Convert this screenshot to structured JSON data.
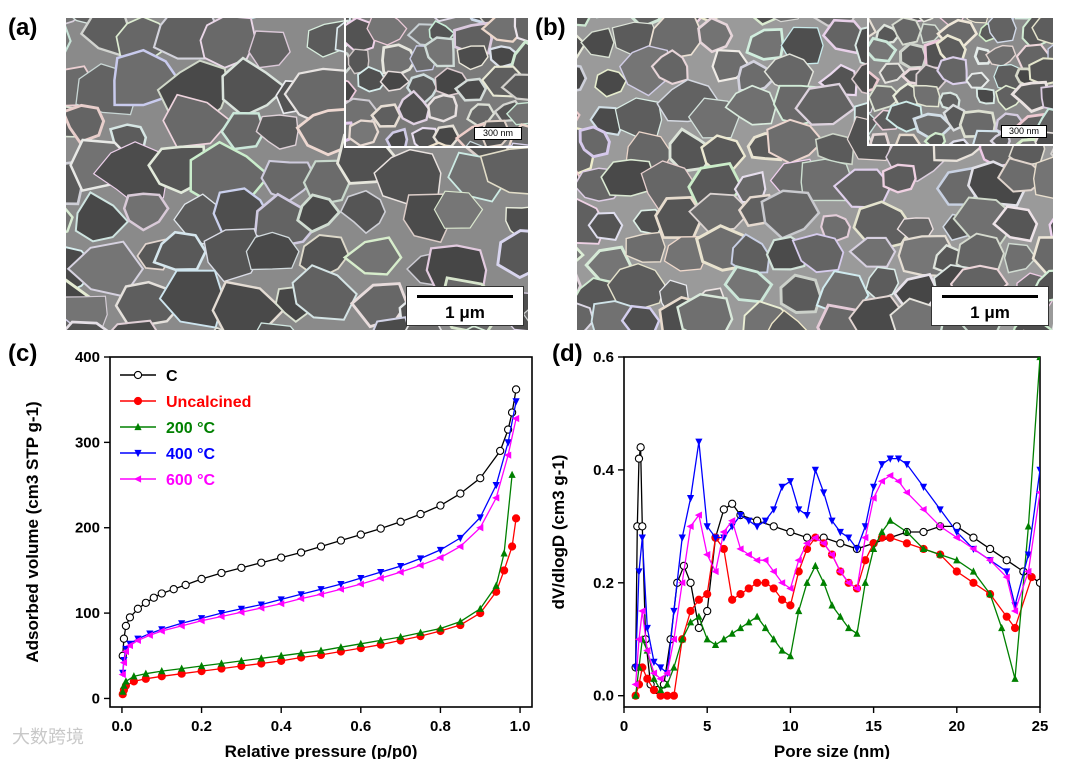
{
  "panels": {
    "a": {
      "label": "(a)",
      "scalebar": "1 μm",
      "inset_scalebar": "300 nm"
    },
    "b": {
      "label": "(b)",
      "scalebar": "1 μm",
      "inset_scalebar": "300 nm"
    },
    "c": {
      "label": "(c)"
    },
    "d": {
      "label": "(d)"
    }
  },
  "watermark": "大数跨境",
  "chart_data": [
    {
      "type": "line",
      "title": "",
      "xlabel": "Relative pressure (p/p0)",
      "ylabel": "Adsorbed volume (cm3 STP g-1)",
      "xlim": [
        -0.03,
        1.03
      ],
      "ylim": [
        -10,
        400
      ],
      "xticks": [
        "0.0",
        "0.2",
        "0.4",
        "0.6",
        "0.8",
        "1.0"
      ],
      "yticks": [
        "0",
        "100",
        "200",
        "300",
        "400"
      ],
      "legend_position": "top-left",
      "series": [
        {
          "name": "C",
          "color": "#000000",
          "marker": "circle-open",
          "x": [
            0.002,
            0.005,
            0.01,
            0.02,
            0.04,
            0.06,
            0.08,
            0.1,
            0.13,
            0.16,
            0.2,
            0.25,
            0.3,
            0.35,
            0.4,
            0.45,
            0.5,
            0.55,
            0.6,
            0.65,
            0.7,
            0.75,
            0.8,
            0.85,
            0.9,
            0.95,
            0.97,
            0.98,
            0.99
          ],
          "y": [
            50,
            70,
            85,
            95,
            105,
            112,
            118,
            123,
            128,
            133,
            140,
            147,
            153,
            159,
            165,
            171,
            178,
            185,
            192,
            199,
            207,
            216,
            226,
            240,
            258,
            290,
            315,
            335,
            362
          ]
        },
        {
          "name": "Uncalcined",
          "color": "#ff0000",
          "marker": "circle-filled",
          "x": [
            0.002,
            0.005,
            0.01,
            0.03,
            0.06,
            0.1,
            0.15,
            0.2,
            0.25,
            0.3,
            0.35,
            0.4,
            0.45,
            0.5,
            0.55,
            0.6,
            0.65,
            0.7,
            0.75,
            0.8,
            0.85,
            0.9,
            0.94,
            0.96,
            0.98,
            0.99
          ],
          "y": [
            5,
            10,
            15,
            20,
            23,
            26,
            29,
            32,
            35,
            38,
            41,
            44,
            48,
            51,
            55,
            59,
            63,
            68,
            73,
            79,
            86,
            100,
            125,
            150,
            178,
            211
          ]
        },
        {
          "name": "200 °C",
          "color": "#008000",
          "marker": "triangle-up",
          "x": [
            0.002,
            0.005,
            0.01,
            0.03,
            0.06,
            0.1,
            0.15,
            0.2,
            0.25,
            0.3,
            0.35,
            0.4,
            0.45,
            0.5,
            0.55,
            0.6,
            0.65,
            0.7,
            0.75,
            0.8,
            0.85,
            0.9,
            0.94,
            0.96,
            0.98
          ],
          "y": [
            8,
            15,
            20,
            26,
            29,
            32,
            35,
            38,
            41,
            44,
            47,
            50,
            53,
            56,
            60,
            64,
            68,
            72,
            77,
            82,
            90,
            105,
            132,
            170,
            262
          ]
        },
        {
          "name": "400 °C",
          "color": "#0000ff",
          "marker": "triangle-down",
          "x": [
            0.002,
            0.005,
            0.01,
            0.02,
            0.04,
            0.07,
            0.1,
            0.15,
            0.2,
            0.25,
            0.3,
            0.35,
            0.4,
            0.45,
            0.5,
            0.55,
            0.6,
            0.65,
            0.7,
            0.75,
            0.8,
            0.85,
            0.9,
            0.94,
            0.97,
            0.99
          ],
          "y": [
            30,
            45,
            58,
            64,
            70,
            76,
            81,
            88,
            94,
            100,
            105,
            110,
            116,
            122,
            128,
            134,
            141,
            148,
            155,
            164,
            174,
            188,
            212,
            250,
            300,
            348
          ]
        },
        {
          "name": "600 °C",
          "color": "#ff00ff",
          "marker": "triangle-left",
          "x": [
            0.002,
            0.005,
            0.01,
            0.02,
            0.04,
            0.07,
            0.1,
            0.15,
            0.2,
            0.25,
            0.3,
            0.35,
            0.4,
            0.45,
            0.5,
            0.55,
            0.6,
            0.65,
            0.7,
            0.75,
            0.8,
            0.85,
            0.9,
            0.94,
            0.97,
            0.99
          ],
          "y": [
            28,
            42,
            55,
            62,
            68,
            74,
            79,
            85,
            91,
            96,
            101,
            106,
            111,
            117,
            122,
            128,
            134,
            141,
            148,
            156,
            165,
            178,
            200,
            235,
            285,
            328
          ]
        }
      ]
    },
    {
      "type": "line",
      "title": "",
      "xlabel": "Pore size (nm)",
      "ylabel": "dV/dlogD (cm3 g-1)",
      "xlim": [
        0,
        25
      ],
      "ylim": [
        -0.02,
        0.6
      ],
      "xticks": [
        "0",
        "5",
        "10",
        "15",
        "20",
        "25"
      ],
      "yticks": [
        "0.0",
        "0.2",
        "0.4",
        "0.6"
      ],
      "series": [
        {
          "name": "C",
          "color": "#000000",
          "marker": "circle-open",
          "x": [
            0.7,
            0.8,
            0.9,
            1.0,
            1.1,
            1.3,
            1.6,
            2.0,
            2.4,
            2.8,
            3.2,
            3.6,
            4.0,
            4.5,
            5.0,
            5.5,
            6.0,
            6.5,
            7.0,
            8.0,
            9.0,
            10.0,
            11.0,
            12.0,
            13.0,
            14.0,
            15.0,
            16.0,
            17.0,
            18.0,
            19.0,
            20.0,
            21.0,
            22.0,
            23.0,
            24.0,
            25.0
          ],
          "y": [
            0.05,
            0.3,
            0.42,
            0.44,
            0.3,
            0.1,
            0.02,
            0.01,
            0.02,
            0.1,
            0.2,
            0.23,
            0.2,
            0.12,
            0.15,
            0.28,
            0.33,
            0.34,
            0.32,
            0.31,
            0.3,
            0.29,
            0.28,
            0.28,
            0.27,
            0.26,
            0.27,
            0.28,
            0.29,
            0.29,
            0.3,
            0.3,
            0.28,
            0.26,
            0.24,
            0.22,
            0.2
          ]
        },
        {
          "name": "Uncalcined",
          "color": "#ff0000",
          "marker": "circle-filled",
          "x": [
            0.7,
            0.9,
            1.1,
            1.4,
            1.8,
            2.2,
            2.6,
            3.0,
            3.5,
            4.0,
            4.5,
            5.0,
            5.5,
            6.0,
            6.5,
            7.0,
            7.5,
            8.0,
            8.5,
            9.0,
            9.5,
            10.0,
            10.5,
            11.0,
            11.5,
            12.0,
            12.5,
            13.0,
            13.5,
            14.0,
            14.5,
            15.0,
            15.5,
            16.0,
            17.0,
            18.0,
            19.0,
            20.0,
            21.0,
            22.0,
            23.0,
            23.5,
            24.5
          ],
          "y": [
            0.0,
            0.02,
            0.05,
            0.03,
            0.01,
            0.0,
            0.0,
            0.0,
            0.1,
            0.15,
            0.17,
            0.18,
            0.28,
            0.26,
            0.17,
            0.18,
            0.19,
            0.2,
            0.2,
            0.19,
            0.17,
            0.16,
            0.22,
            0.26,
            0.28,
            0.27,
            0.25,
            0.22,
            0.2,
            0.19,
            0.24,
            0.27,
            0.28,
            0.28,
            0.27,
            0.26,
            0.25,
            0.22,
            0.2,
            0.18,
            0.14,
            0.12,
            0.21
          ]
        },
        {
          "name": "200 °C",
          "color": "#008000",
          "marker": "triangle-up",
          "x": [
            0.7,
            0.9,
            1.1,
            1.4,
            1.8,
            2.2,
            2.6,
            3.0,
            3.5,
            4.0,
            4.5,
            5.0,
            5.5,
            6.0,
            6.5,
            7.0,
            7.5,
            8.0,
            8.5,
            9.0,
            9.5,
            10.0,
            10.5,
            11.0,
            11.5,
            12.0,
            12.5,
            13.0,
            13.5,
            14.0,
            14.5,
            15.0,
            15.5,
            16.0,
            17.0,
            18.0,
            19.0,
            20.0,
            21.0,
            22.0,
            22.7,
            23.5,
            24.3,
            25.0
          ],
          "y": [
            0.0,
            0.05,
            0.1,
            0.08,
            0.03,
            0.01,
            0.02,
            0.05,
            0.1,
            0.13,
            0.14,
            0.1,
            0.09,
            0.1,
            0.11,
            0.12,
            0.13,
            0.14,
            0.12,
            0.1,
            0.08,
            0.07,
            0.15,
            0.2,
            0.23,
            0.2,
            0.16,
            0.14,
            0.12,
            0.11,
            0.2,
            0.26,
            0.29,
            0.31,
            0.29,
            0.26,
            0.25,
            0.24,
            0.22,
            0.18,
            0.12,
            0.03,
            0.3,
            0.6
          ]
        },
        {
          "name": "400 °C",
          "color": "#0000ff",
          "marker": "triangle-down",
          "x": [
            0.7,
            0.9,
            1.1,
            1.4,
            1.8,
            2.2,
            2.6,
            3.0,
            3.5,
            4.0,
            4.5,
            5.0,
            5.5,
            6.0,
            6.5,
            7.0,
            7.5,
            8.0,
            8.5,
            9.0,
            9.5,
            10.0,
            10.5,
            11.0,
            11.5,
            12.0,
            12.5,
            13.0,
            13.5,
            14.0,
            14.5,
            15.0,
            15.5,
            16.0,
            16.5,
            17.0,
            18.0,
            19.0,
            20.0,
            21.0,
            22.0,
            23.0,
            23.5,
            24.3,
            25.0
          ],
          "y": [
            0.05,
            0.22,
            0.28,
            0.12,
            0.06,
            0.05,
            0.04,
            0.15,
            0.28,
            0.35,
            0.45,
            0.3,
            0.28,
            0.28,
            0.3,
            0.32,
            0.31,
            0.3,
            0.31,
            0.33,
            0.37,
            0.38,
            0.33,
            0.32,
            0.4,
            0.36,
            0.31,
            0.29,
            0.28,
            0.26,
            0.3,
            0.37,
            0.41,
            0.42,
            0.42,
            0.41,
            0.37,
            0.33,
            0.29,
            0.26,
            0.24,
            0.22,
            0.16,
            0.25,
            0.4
          ]
        },
        {
          "name": "600 °C",
          "color": "#ff00ff",
          "marker": "triangle-left",
          "x": [
            0.7,
            0.9,
            1.1,
            1.4,
            1.8,
            2.2,
            2.6,
            3.0,
            3.5,
            4.0,
            4.5,
            5.0,
            5.5,
            6.0,
            6.5,
            7.0,
            7.5,
            8.0,
            8.5,
            9.0,
            9.5,
            10.0,
            10.5,
            11.0,
            11.5,
            12.0,
            12.5,
            13.0,
            13.5,
            14.0,
            14.5,
            15.0,
            15.5,
            16.0,
            16.5,
            17.0,
            18.0,
            19.0,
            20.0,
            21.0,
            22.0,
            23.0,
            23.5,
            24.3,
            25.0
          ],
          "y": [
            0.02,
            0.1,
            0.15,
            0.08,
            0.04,
            0.03,
            0.04,
            0.1,
            0.2,
            0.3,
            0.32,
            0.25,
            0.22,
            0.29,
            0.31,
            0.26,
            0.25,
            0.24,
            0.24,
            0.22,
            0.2,
            0.19,
            0.24,
            0.27,
            0.28,
            0.27,
            0.25,
            0.22,
            0.2,
            0.19,
            0.28,
            0.35,
            0.38,
            0.39,
            0.38,
            0.36,
            0.33,
            0.3,
            0.28,
            0.26,
            0.24,
            0.21,
            0.15,
            0.22,
            0.36
          ]
        }
      ]
    }
  ]
}
